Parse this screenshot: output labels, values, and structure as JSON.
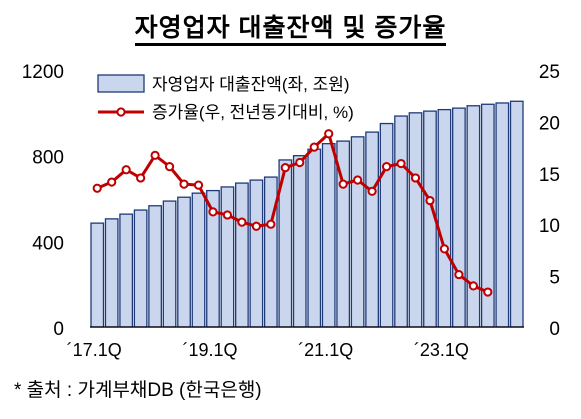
{
  "chart_data": {
    "type": "bar+line",
    "title": "자영업자 대출잔액 및 증가율",
    "x_tick_labels": [
      "´17.1Q",
      "´19.1Q",
      "´21.1Q",
      "´23.1Q"
    ],
    "x_tick_indices": [
      0,
      8,
      16,
      24
    ],
    "y_left": {
      "ticks": [
        "0",
        "400",
        "800",
        "1200"
      ],
      "range": [
        0,
        1200
      ]
    },
    "y_right": {
      "ticks": [
        "0",
        "5",
        "10",
        "15",
        "20",
        "25"
      ],
      "range": [
        0,
        25
      ]
    },
    "legend_position": "top-left",
    "series": [
      {
        "name": "자영업자 대출잔액(좌, 조원)",
        "type": "bar",
        "axis": "left",
        "color": "#c9d6ee",
        "edge_color": "#1f3a78",
        "values": [
          485,
          505,
          527,
          546,
          566,
          588,
          606,
          625,
          637,
          654,
          672,
          686,
          700,
          780,
          800,
          830,
          856,
          868,
          888,
          910,
          950,
          985,
          1000,
          1008,
          1015,
          1022,
          1033,
          1040,
          1046,
          1054
        ]
      },
      {
        "name": "증가율(우, 전년동기대비, %)",
        "type": "line",
        "axis": "right",
        "color": "#c00000",
        "marker": "circle-open",
        "values": [
          13.5,
          14.1,
          15.3,
          14.5,
          16.7,
          15.6,
          13.9,
          13.8,
          11.2,
          10.9,
          10.2,
          9.8,
          10.0,
          15.5,
          16.0,
          17.5,
          18.8,
          13.9,
          14.3,
          13.2,
          15.6,
          15.9,
          14.5,
          12.3,
          7.6,
          5.1,
          4.0,
          3.4
        ]
      }
    ]
  },
  "source_text": "*  출처  :  가계부채DB  (한국은행)",
  "colors": {
    "bar_fill": "#c9d6ee",
    "bar_edge": "#1f3a78",
    "line": "#c00000",
    "axis": "#000000"
  }
}
